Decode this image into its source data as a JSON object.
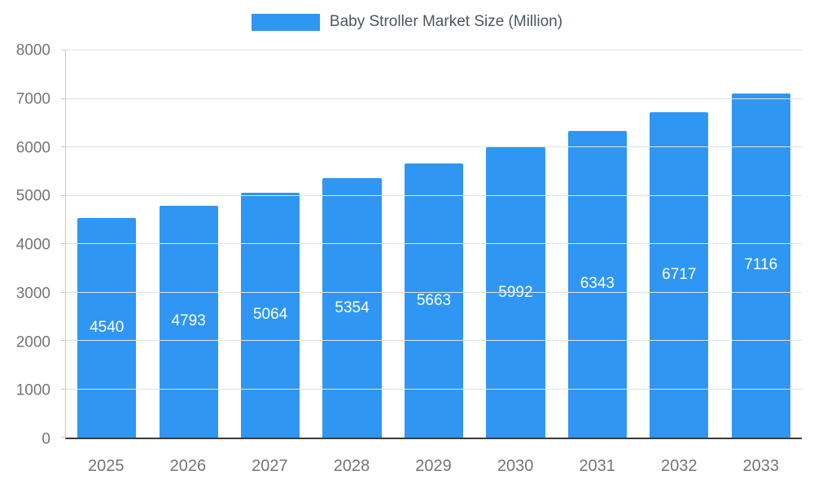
{
  "chart_data": {
    "type": "bar",
    "title": "Baby Stroller Market Size (Million)",
    "categories": [
      "2025",
      "2026",
      "2027",
      "2028",
      "2029",
      "2030",
      "2031",
      "2032",
      "2033"
    ],
    "values": [
      4540,
      4793,
      5064,
      5354,
      5663,
      5992,
      6343,
      6717,
      7116
    ],
    "xlabel": "",
    "ylabel": "",
    "ylim": [
      0,
      8000
    ],
    "yticks": [
      0,
      1000,
      2000,
      3000,
      4000,
      5000,
      6000,
      7000,
      8000
    ],
    "grid": true,
    "legend_position": "top",
    "bar_color": "#2F96F3",
    "bar_value_label_color": "#ffffff",
    "axis_text_color": "#757575"
  }
}
